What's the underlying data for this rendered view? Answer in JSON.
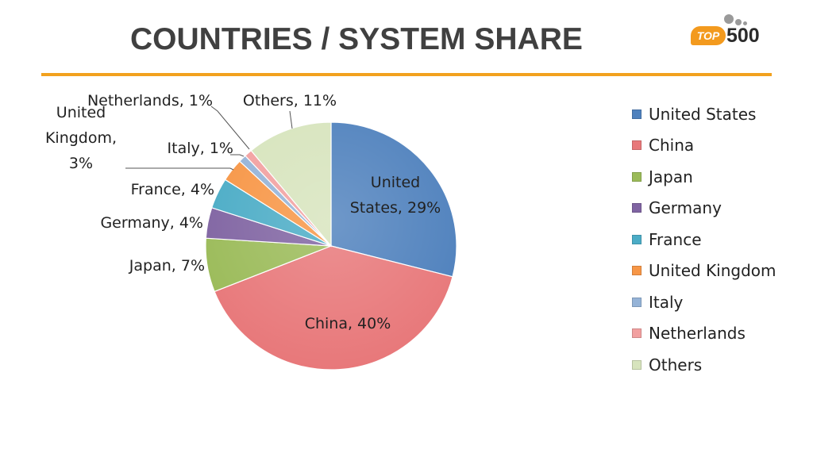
{
  "title": "COUNTRIES / SYSTEM SHARE",
  "logo": {
    "badge": "TOP",
    "number": "500",
    "accent": "#f39a1e"
  },
  "chart_data": {
    "type": "pie",
    "title": "",
    "categories": [
      "United States",
      "China",
      "Japan",
      "Germany",
      "France",
      "United Kingdom",
      "Italy",
      "Netherlands",
      "Others"
    ],
    "values": [
      29,
      40,
      7,
      4,
      4,
      3,
      1,
      1,
      11
    ],
    "data_labels": [
      [
        "United",
        "States, 29%"
      ],
      [
        "China, 40%"
      ],
      [
        "Japan, 7%"
      ],
      [
        "Germany, 4%"
      ],
      [
        "France, 4%"
      ],
      [
        "United",
        "Kingdom,",
        "3%"
      ],
      [
        "Italy, 1%"
      ],
      [
        "Netherlands, 1%"
      ],
      [
        "Others, 11%"
      ]
    ],
    "colors": [
      "#4f81bd",
      "#e8787a",
      "#9bbb59",
      "#8064a2",
      "#4bacc6",
      "#f79646",
      "#95b3d7",
      "#f2a0a0",
      "#d7e4bd"
    ],
    "legend_position": "right",
    "start_angle_deg": 0,
    "direction": "clockwise"
  }
}
